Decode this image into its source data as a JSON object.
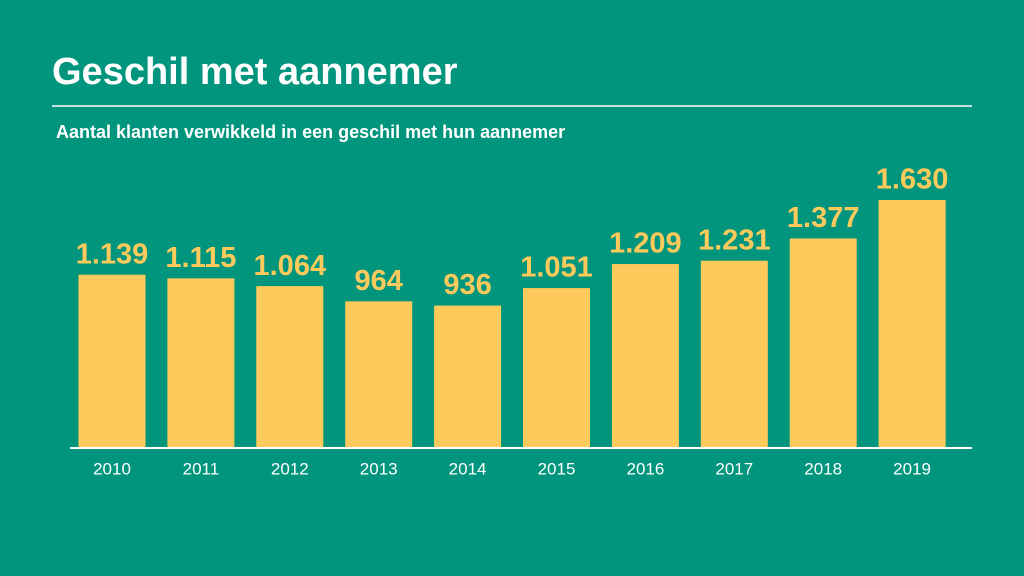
{
  "chart_data": {
    "type": "bar",
    "title": "Geschil met aannemer",
    "subtitle": "Aantal klanten verwikkeld in een geschil met hun aannemer",
    "categories": [
      "2010",
      "2011",
      "2012",
      "2013",
      "2014",
      "2015",
      "2016",
      "2017",
      "2018",
      "2019"
    ],
    "values": [
      1139,
      1115,
      1064,
      964,
      936,
      1051,
      1209,
      1231,
      1377,
      1630
    ],
    "value_labels": [
      "1.139",
      "1.115",
      "1.064",
      "964",
      "936",
      "1.051",
      "1.209",
      "1.231",
      "1.377",
      "1.630"
    ],
    "color": "#fdca5b"
  }
}
